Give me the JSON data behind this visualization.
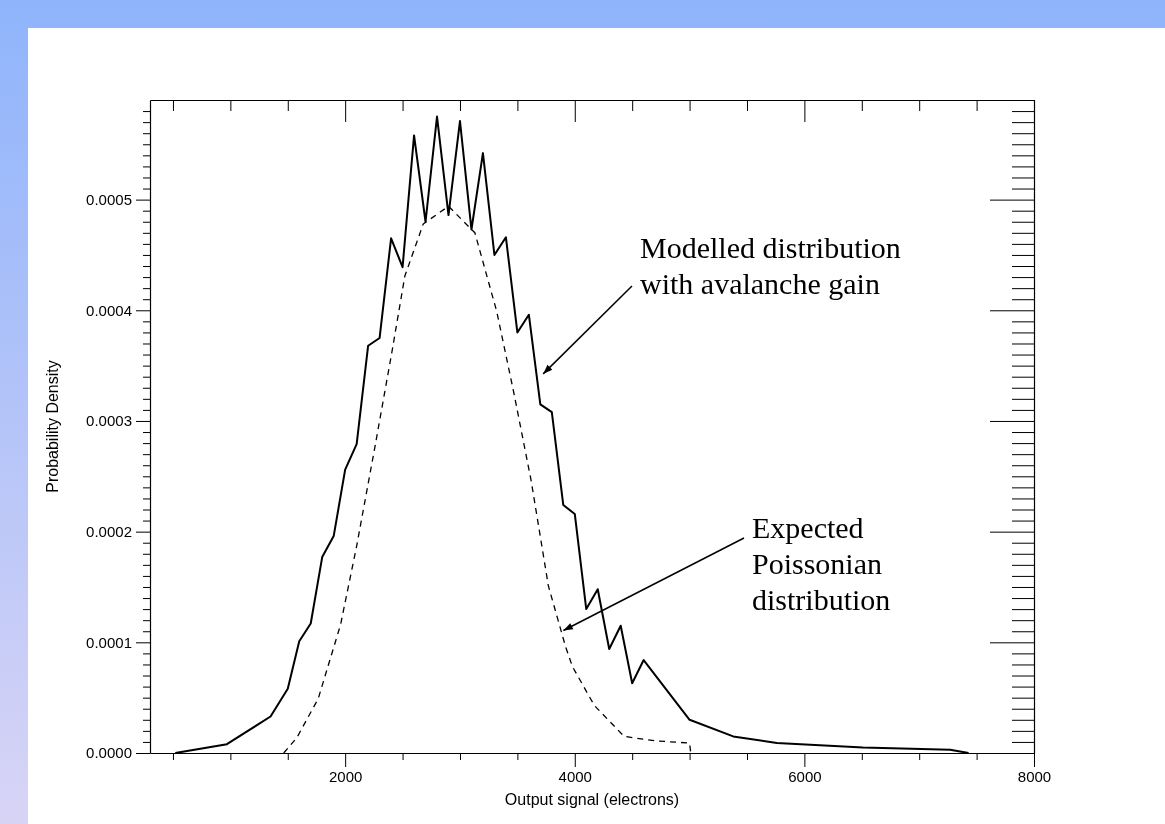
{
  "chart_data": {
    "type": "line",
    "xlabel": "Output signal (electrons)",
    "ylabel": "Probability Density",
    "xlim": [
      300,
      8000
    ],
    "ylim": [
      0,
      0.00059
    ],
    "xticks": [
      {
        "value": 500,
        "label": null
      },
      {
        "value": 1000,
        "label": null
      },
      {
        "value": 1500,
        "label": null
      },
      2000,
      {
        "value": 2500,
        "label": null
      },
      {
        "value": 3000,
        "label": null
      },
      {
        "value": 3500,
        "label": null
      },
      4000,
      {
        "value": 4500,
        "label": null
      },
      {
        "value": 5000,
        "label": null
      },
      {
        "value": 5500,
        "label": null
      },
      6000,
      {
        "value": 6500,
        "label": null
      },
      {
        "value": 7000,
        "label": null
      },
      {
        "value": 7500,
        "label": null
      },
      8000
    ],
    "yticks": [
      {
        "value": 0,
        "label": "0.0000"
      },
      {
        "value": 1e-05,
        "label": null
      },
      {
        "value": 2e-05,
        "label": null
      },
      {
        "value": 3e-05,
        "label": null
      },
      {
        "value": 4e-05,
        "label": null
      },
      {
        "value": 5e-05,
        "label": null
      },
      {
        "value": 6e-05,
        "label": null
      },
      {
        "value": 7e-05,
        "label": null
      },
      {
        "value": 8e-05,
        "label": null
      },
      {
        "value": 9e-05,
        "label": null
      },
      {
        "value": 0.0001,
        "label": "0.0001"
      },
      {
        "value": 0.00011,
        "label": null
      },
      {
        "value": 0.00012,
        "label": null
      },
      {
        "value": 0.00013,
        "label": null
      },
      {
        "value": 0.00014,
        "label": null
      },
      {
        "value": 0.00015,
        "label": null
      },
      {
        "value": 0.00016,
        "label": null
      },
      {
        "value": 0.00017,
        "label": null
      },
      {
        "value": 0.00018,
        "label": null
      },
      {
        "value": 0.00019,
        "label": null
      },
      {
        "value": 0.0002,
        "label": "0.0002"
      },
      {
        "value": 0.00021,
        "label": null
      },
      {
        "value": 0.00022,
        "label": null
      },
      {
        "value": 0.00023,
        "label": null
      },
      {
        "value": 0.00024,
        "label": null
      },
      {
        "value": 0.00025,
        "label": null
      },
      {
        "value": 0.00026,
        "label": null
      },
      {
        "value": 0.00027,
        "label": null
      },
      {
        "value": 0.00028,
        "label": null
      },
      {
        "value": 0.00029,
        "label": null
      },
      {
        "value": 0.0003,
        "label": "0.0003"
      },
      {
        "value": 0.00031,
        "label": null
      },
      {
        "value": 0.00032,
        "label": null
      },
      {
        "value": 0.00033,
        "label": null
      },
      {
        "value": 0.00034,
        "label": null
      },
      {
        "value": 0.00035,
        "label": null
      },
      {
        "value": 0.00036,
        "label": null
      },
      {
        "value": 0.00037,
        "label": null
      },
      {
        "value": 0.00038,
        "label": null
      },
      {
        "value": 0.00039,
        "label": null
      },
      {
        "value": 0.0004,
        "label": "0.0004"
      },
      {
        "value": 0.00041,
        "label": null
      },
      {
        "value": 0.00042,
        "label": null
      },
      {
        "value": 0.00043,
        "label": null
      },
      {
        "value": 0.00044,
        "label": null
      },
      {
        "value": 0.00045,
        "label": null
      },
      {
        "value": 0.00046,
        "label": null
      },
      {
        "value": 0.00047,
        "label": null
      },
      {
        "value": 0.00048,
        "label": null
      },
      {
        "value": 0.00049,
        "label": null
      },
      {
        "value": 0.0005,
        "label": "0.0005"
      },
      {
        "value": 0.00051,
        "label": null
      },
      {
        "value": 0.00052,
        "label": null
      },
      {
        "value": 0.00053,
        "label": null
      },
      {
        "value": 0.00054,
        "label": null
      },
      {
        "value": 0.00055,
        "label": null
      },
      {
        "value": 0.00056,
        "label": null
      },
      {
        "value": 0.00057,
        "label": null
      },
      {
        "value": 0.00058,
        "label": null
      }
    ],
    "grid": false,
    "series": [
      {
        "color": "#000000",
        "line_style": "solid",
        "x": [
          520,
          970,
          1350,
          1500,
          1600,
          1700,
          1800,
          1900,
          2000,
          2100,
          2200,
          2300,
          2400,
          2500,
          2600,
          2700,
          2800,
          2900,
          3000,
          3100,
          3200,
          3300,
          3400,
          3500,
          3600,
          3700,
          3800,
          3900,
          4000,
          4100,
          4200,
          4300,
          4400,
          4500,
          4600,
          5000,
          5380,
          5760,
          6510,
          7270,
          7430
        ],
        "values": [
          0,
          8e-06,
          3.3e-05,
          5.8e-05,
          0.000101,
          0.000117,
          0.000177,
          0.000196,
          0.000256,
          0.000279,
          0.000368,
          0.000375,
          0.000465,
          0.000439,
          0.000558,
          0.00048,
          0.000575,
          0.000486,
          0.000571,
          0.000473,
          0.000542,
          0.00045,
          0.000466,
          0.00038,
          0.000396,
          0.000315,
          0.000308,
          0.000224,
          0.000216,
          0.00013,
          0.000148,
          9.4e-05,
          0.000115,
          6.3e-05,
          8.4e-05,
          3e-05,
          1.5e-05,
          9e-06,
          5e-06,
          3e-06,
          0
        ]
      },
      {
        "color": "#000000",
        "line_style": "dashed",
        "x": [
          1465,
          1580,
          1765,
          1960,
          2100,
          2260,
          2410,
          2520,
          2680,
          2900,
          3130,
          3320,
          3470,
          3620,
          3770,
          3920,
          3980,
          4170,
          4430,
          4700,
          5000,
          5010
        ],
        "values": [
          0,
          1.4e-05,
          4.9e-05,
          0.000116,
          0.000187,
          0.000277,
          0.000364,
          0.000431,
          0.000478,
          0.000494,
          0.00047,
          0.000399,
          0.000325,
          0.000246,
          0.000151,
          9.6e-05,
          7.8e-05,
          4.3e-05,
          1.5e-05,
          1.1e-05,
          9e-06,
          0
        ]
      }
    ],
    "annotations": [
      {
        "text": "Modelled distribution\nwith avalanche gain",
        "x": 3700,
        "y": 0.00034
      },
      {
        "text": "Expected\nPoissonian\ndistribution",
        "x": 3870,
        "y": 0.000109
      }
    ]
  }
}
